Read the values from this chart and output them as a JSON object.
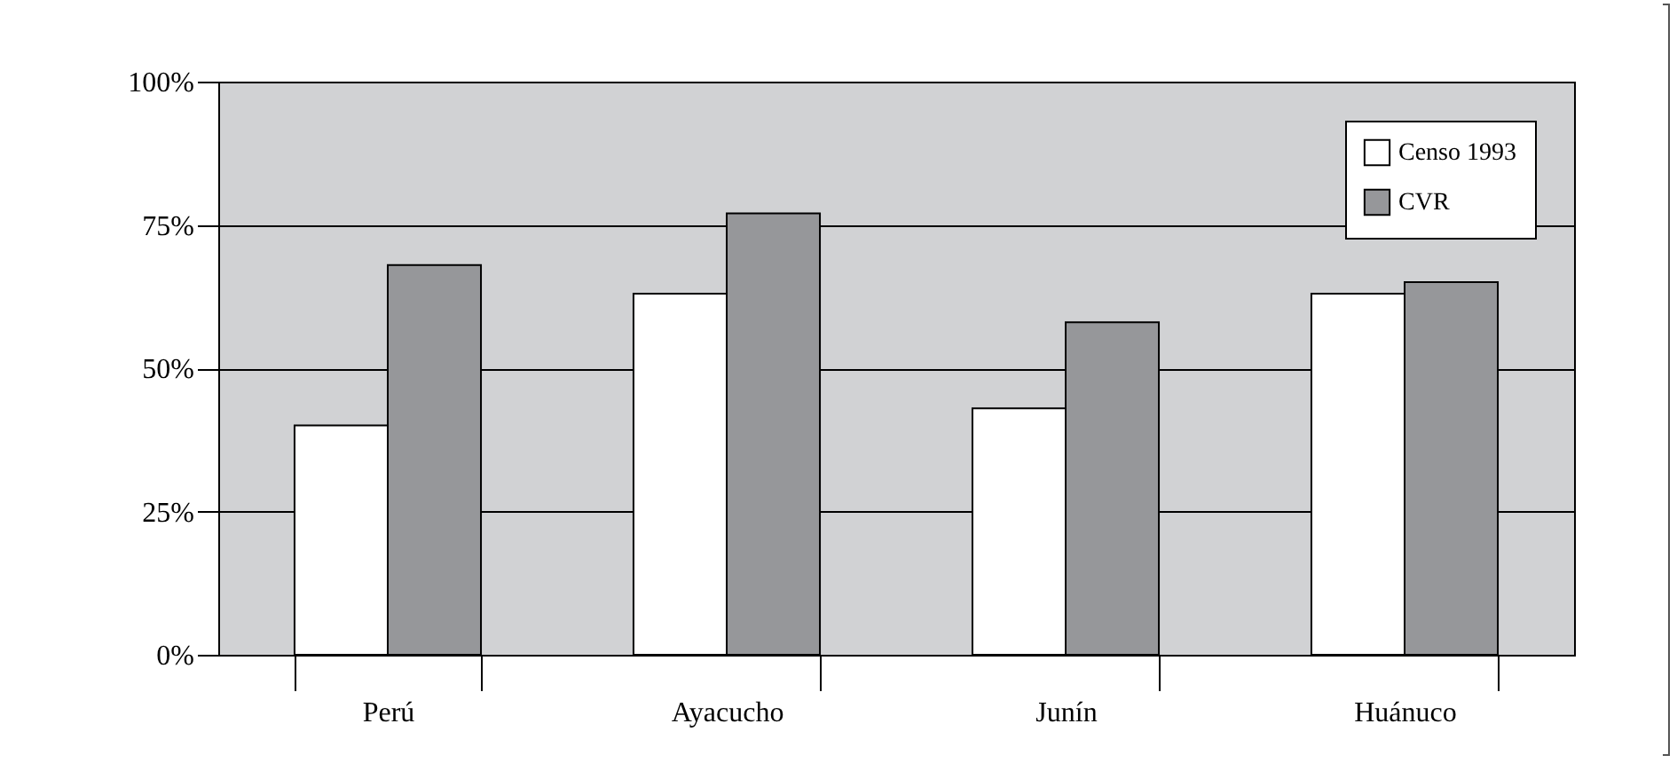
{
  "chart_data": {
    "type": "bar",
    "categories": [
      "Perú",
      "Ayacucho",
      "Junín",
      "Huánuco"
    ],
    "series": [
      {
        "name": "Censo 1993",
        "color": "#ffffff",
        "values": [
          40,
          63,
          43,
          63
        ]
      },
      {
        "name": "CVR",
        "color": "#96979a",
        "values": [
          68,
          77,
          58,
          65
        ]
      }
    ],
    "ylim": [
      0,
      100
    ],
    "yticks": [
      {
        "value": 0,
        "label": "0%"
      },
      {
        "value": 25,
        "label": "25%"
      },
      {
        "value": 50,
        "label": "50%"
      },
      {
        "value": 75,
        "label": "75%"
      },
      {
        "value": 100,
        "label": "100%"
      }
    ],
    "grid": "y",
    "legend": "top right"
  }
}
